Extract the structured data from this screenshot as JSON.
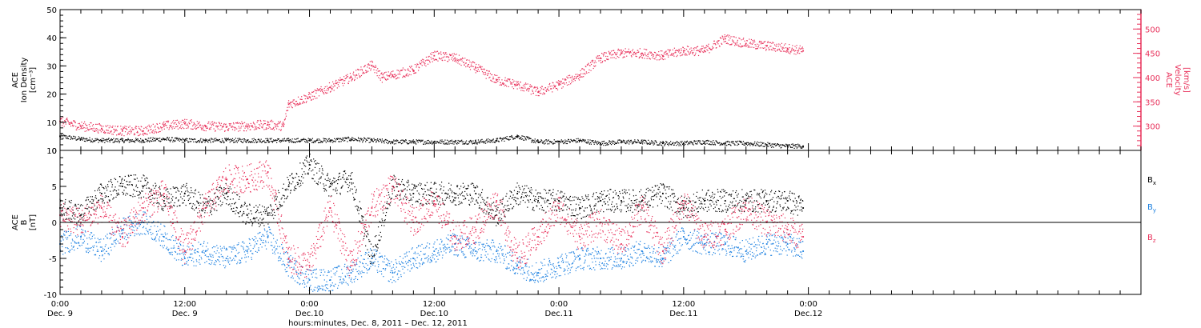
{
  "colors": {
    "black": "#000000",
    "pink": "#e8305a",
    "blue": "#1a7fe0"
  },
  "xaxis": {
    "title": "hours:minutes, Dec. 8, 2011 – Dec. 12, 2011",
    "range_hours": [
      0,
      104
    ],
    "major_ticks": [
      {
        "hour": 0,
        "time": "0:00",
        "day": "Dec. 9"
      },
      {
        "hour": 12,
        "time": "12:00",
        "day": "Dec. 9"
      },
      {
        "hour": 24,
        "time": "0:00",
        "day": "Dec.10"
      },
      {
        "hour": 36,
        "time": "12:00",
        "day": "Dec.10"
      },
      {
        "hour": 48,
        "time": "0:00",
        "day": "Dec.11"
      },
      {
        "hour": 60,
        "time": "12:00",
        "day": "Dec.11"
      },
      {
        "hour": 72,
        "time": "0:00",
        "day": "Dec.12"
      }
    ],
    "minor_step_hours": 2
  },
  "top_panel": {
    "left_axis": {
      "lines": [
        "ACE",
        "Ion Density",
        "[cm⁻³]"
      ],
      "range": [
        0,
        50
      ],
      "ticks": [
        0,
        10,
        20,
        30,
        40,
        50
      ]
    },
    "right_axis": {
      "lines": [
        "ACE",
        "Velocity",
        "[km/s]"
      ],
      "range": [
        250,
        540
      ],
      "ticks": [
        300,
        350,
        400,
        450,
        500
      ]
    }
  },
  "bottom_panel": {
    "left_axis": {
      "lines": [
        "ACE",
        "B",
        "[nT]"
      ],
      "range": [
        -10,
        10
      ],
      "ticks": [
        -10,
        -5,
        0,
        5,
        10
      ]
    },
    "legend": [
      {
        "base": "B",
        "sub": "x",
        "color": "#000000"
      },
      {
        "base": "B",
        "sub": "y",
        "color": "#1a7fe0"
      },
      {
        "base": "B",
        "sub": "z",
        "color": "#e8305a"
      }
    ]
  },
  "chart_data": [
    {
      "type": "scatter",
      "panel": "top",
      "series": [
        {
          "name": "Ion Density",
          "axis": "left",
          "color": "#000000",
          "x": [
            0,
            2,
            4,
            6,
            8,
            10,
            12,
            14,
            16,
            18,
            20,
            22,
            24,
            26,
            28,
            30,
            32,
            34,
            36,
            38,
            40,
            42,
            44,
            46,
            48,
            50,
            52,
            54,
            56,
            58,
            60,
            62,
            64,
            66,
            68,
            70,
            71.5
          ],
          "y": [
            5,
            4,
            3.5,
            3.5,
            3.5,
            4,
            3.5,
            3.5,
            3.5,
            3.5,
            3.5,
            3.5,
            3.5,
            3.5,
            4,
            3.5,
            3,
            3,
            3,
            3,
            3,
            3.5,
            5,
            3,
            3,
            3.5,
            2.5,
            3,
            3,
            2.5,
            2.5,
            3,
            2.5,
            2.5,
            2,
            1.5,
            1.5
          ]
        },
        {
          "name": "Velocity",
          "axis": "right",
          "color": "#e8305a",
          "x": [
            0,
            2,
            4,
            6,
            8,
            10,
            12,
            14,
            16,
            18,
            20,
            21.5,
            22,
            24,
            26,
            28,
            30,
            31,
            32,
            34,
            36,
            38,
            40,
            42,
            44,
            46,
            48,
            50,
            52,
            54,
            56,
            58,
            60,
            62,
            64,
            66,
            68,
            70,
            71.5
          ],
          "y": [
            310,
            300,
            295,
            290,
            290,
            300,
            305,
            300,
            298,
            300,
            303,
            300,
            345,
            360,
            380,
            400,
            425,
            400,
            405,
            415,
            445,
            440,
            420,
            395,
            385,
            370,
            385,
            405,
            440,
            450,
            450,
            445,
            455,
            455,
            480,
            470,
            465,
            460,
            455
          ]
        }
      ]
    },
    {
      "type": "scatter",
      "panel": "bottom",
      "series": [
        {
          "name": "Bx",
          "color": "#000000",
          "x": [
            0,
            2,
            4,
            6,
            8,
            10,
            12,
            14,
            16,
            18,
            20,
            22,
            24,
            26,
            28,
            30,
            32,
            34,
            36,
            38,
            40,
            42,
            44,
            46,
            48,
            50,
            52,
            54,
            56,
            58,
            60,
            62,
            64,
            66,
            68,
            70,
            71.5
          ],
          "y": [
            2,
            1,
            4,
            5,
            5,
            3,
            4,
            2,
            4,
            1,
            1,
            5,
            8,
            5,
            6,
            -5,
            5,
            4,
            4,
            4,
            4,
            1,
            4,
            3,
            3,
            2,
            3,
            3,
            3,
            4,
            2,
            3,
            3,
            3,
            3,
            3,
            2
          ]
        },
        {
          "name": "By",
          "color": "#1a7fe0",
          "x": [
            0,
            2,
            4,
            6,
            8,
            10,
            12,
            14,
            16,
            18,
            20,
            22,
            24,
            26,
            28,
            30,
            32,
            34,
            36,
            38,
            40,
            42,
            44,
            46,
            48,
            50,
            52,
            54,
            56,
            58,
            60,
            62,
            64,
            66,
            68,
            70,
            71.5
          ],
          "y": [
            -3,
            -2,
            -4,
            -1,
            0,
            -2,
            -5,
            -4,
            -5,
            -4,
            -2,
            -6,
            -8,
            -8,
            -7,
            -5,
            -7,
            -5,
            -4,
            -3,
            -4,
            -4,
            -6,
            -7,
            -6,
            -5,
            -5,
            -5,
            -4,
            -5,
            -2,
            -3,
            -3,
            -4,
            -3,
            -3,
            -4
          ]
        },
        {
          "name": "Bz",
          "color": "#e8305a",
          "x": [
            0,
            2,
            4,
            6,
            8,
            10,
            12,
            14,
            16,
            18,
            20,
            22,
            24,
            26,
            28,
            30,
            32,
            34,
            36,
            38,
            40,
            42,
            44,
            46,
            48,
            50,
            52,
            54,
            56,
            58,
            60,
            62,
            64,
            66,
            68,
            70,
            71.5
          ],
          "y": [
            1,
            0,
            2,
            -2,
            2,
            4,
            -4,
            2,
            6,
            6,
            7,
            -5,
            -6,
            2,
            -6,
            2,
            5,
            0,
            3,
            -2,
            -1,
            3,
            -5,
            -2,
            2,
            -2,
            0,
            -3,
            2,
            -4,
            3,
            -2,
            -1,
            2,
            0,
            -1,
            -2
          ]
        }
      ]
    }
  ]
}
